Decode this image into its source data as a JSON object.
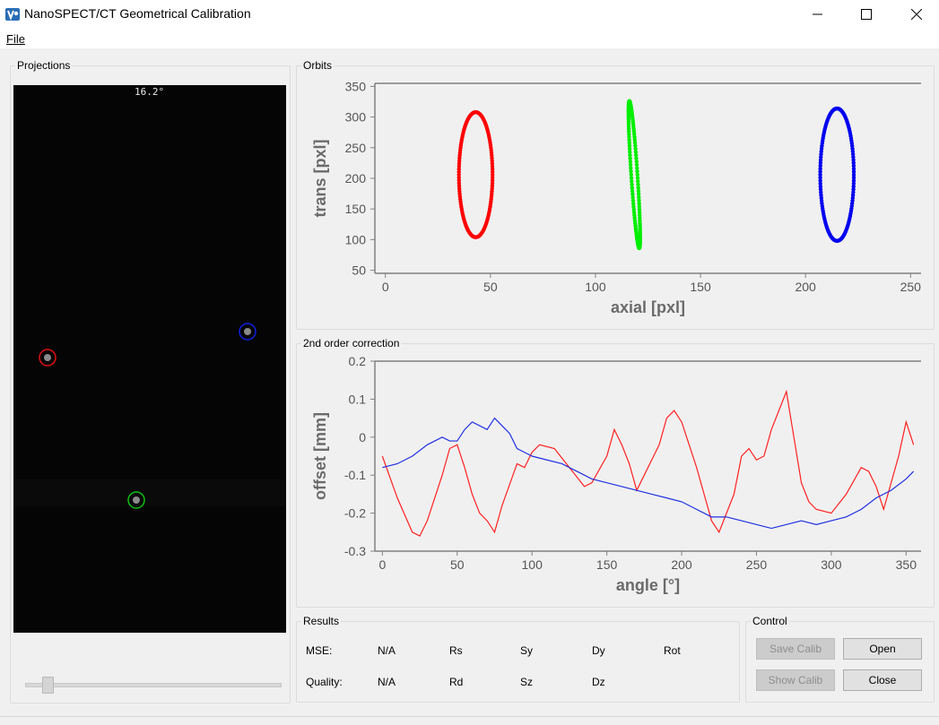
{
  "window": {
    "title": "NanoSPECT/CT Geometrical Calibration",
    "icons": [
      "app-icon",
      "minimize-icon",
      "maximize-icon",
      "close-icon"
    ]
  },
  "menu": {
    "file_label": "File"
  },
  "projections": {
    "title": "Projections",
    "angle_label": "16.2°",
    "slider_fraction": 0.08,
    "markers": [
      {
        "name": "red-marker",
        "color": "#e01010"
      },
      {
        "name": "blue-marker",
        "color": "#1020e0"
      },
      {
        "name": "green-marker",
        "color": "#10c010"
      }
    ]
  },
  "orbits": {
    "title": "Orbits"
  },
  "correction": {
    "title": "2nd order correction"
  },
  "results": {
    "title": "Results",
    "mse_label": "MSE:",
    "mse_value": "N/A",
    "quality_label": "Quality:",
    "quality_value": "N/A",
    "row1": [
      "Rs",
      "Sy",
      "Dy",
      "Rot"
    ],
    "row2": [
      "Rd",
      "Sz",
      "Dz"
    ]
  },
  "control": {
    "title": "Control",
    "save_calib": "Save Calib",
    "open": "Open",
    "show_calib": "Show Calib",
    "close": "Close"
  },
  "chart_data": [
    {
      "type": "scatter",
      "xlabel": "axial [pxl]",
      "ylabel": "trans [pxl]",
      "xlim": [
        -5,
        255
      ],
      "ylim": [
        45,
        355
      ],
      "xticks": [
        0,
        50,
        100,
        150,
        200,
        250
      ],
      "yticks": [
        50,
        100,
        150,
        200,
        250,
        300,
        350
      ],
      "series": [
        {
          "color": "#ff0000",
          "shape": "ellipse",
          "center": [
            43,
            206
          ],
          "rx": 8,
          "ry": 102
        },
        {
          "color": "#00ee00",
          "shape": "ellipse",
          "center": [
            118.5,
            206
          ],
          "rx": 1.5,
          "ry": 120,
          "tilt": 0.8
        },
        {
          "color": "#0000ee",
          "shape": "ellipse",
          "center": [
            215,
            206
          ],
          "rx": 8,
          "ry": 108
        }
      ]
    },
    {
      "type": "line",
      "xlabel": "angle [°]",
      "ylabel": "offset [mm]",
      "xlim": [
        -5,
        360
      ],
      "ylim": [
        -0.3,
        0.2
      ],
      "xticks": [
        0,
        50,
        100,
        150,
        200,
        250,
        300,
        350
      ],
      "yticks": [
        0.2,
        0.1,
        0,
        -0.1,
        -0.2,
        -0.3
      ],
      "series": [
        {
          "color": "#ff2020",
          "x": [
            0,
            10,
            20,
            25,
            30,
            40,
            45,
            50,
            55,
            60,
            65,
            70,
            75,
            80,
            90,
            95,
            100,
            105,
            115,
            125,
            135,
            140,
            150,
            155,
            160,
            165,
            170,
            175,
            185,
            190,
            195,
            200,
            210,
            215,
            220,
            225,
            230,
            235,
            240,
            245,
            250,
            255,
            260,
            265,
            270,
            275,
            280,
            285,
            290,
            300,
            310,
            320,
            325,
            330,
            335,
            340,
            345,
            350,
            355
          ],
          "y": [
            -0.05,
            -0.16,
            -0.25,
            -0.26,
            -0.22,
            -0.1,
            -0.03,
            -0.02,
            -0.08,
            -0.15,
            -0.2,
            -0.22,
            -0.25,
            -0.18,
            -0.07,
            -0.08,
            -0.04,
            -0.02,
            -0.03,
            -0.08,
            -0.13,
            -0.12,
            -0.05,
            0.02,
            -0.02,
            -0.07,
            -0.14,
            -0.1,
            -0.02,
            0.05,
            0.07,
            0.04,
            -0.08,
            -0.15,
            -0.22,
            -0.25,
            -0.2,
            -0.15,
            -0.05,
            -0.03,
            -0.06,
            -0.05,
            0.02,
            0.07,
            0.12,
            0.0,
            -0.12,
            -0.17,
            -0.19,
            -0.2,
            -0.15,
            -0.08,
            -0.09,
            -0.13,
            -0.19,
            -0.12,
            -0.05,
            0.04,
            -0.02
          ]
        },
        {
          "color": "#2030e0",
          "x": [
            0,
            10,
            20,
            30,
            40,
            45,
            50,
            55,
            60,
            65,
            70,
            75,
            80,
            85,
            90,
            95,
            100,
            110,
            120,
            130,
            140,
            150,
            160,
            170,
            180,
            190,
            200,
            210,
            220,
            230,
            240,
            250,
            260,
            270,
            280,
            290,
            300,
            310,
            320,
            330,
            340,
            350,
            355
          ],
          "y": [
            -0.08,
            -0.07,
            -0.05,
            -0.02,
            0.0,
            -0.01,
            -0.01,
            0.02,
            0.04,
            0.03,
            0.02,
            0.05,
            0.03,
            0.01,
            -0.03,
            -0.04,
            -0.05,
            -0.06,
            -0.07,
            -0.09,
            -0.11,
            -0.12,
            -0.13,
            -0.14,
            -0.15,
            -0.16,
            -0.17,
            -0.19,
            -0.21,
            -0.21,
            -0.22,
            -0.23,
            -0.24,
            -0.23,
            -0.22,
            -0.23,
            -0.22,
            -0.21,
            -0.19,
            -0.16,
            -0.14,
            -0.11,
            -0.09
          ]
        }
      ]
    }
  ]
}
